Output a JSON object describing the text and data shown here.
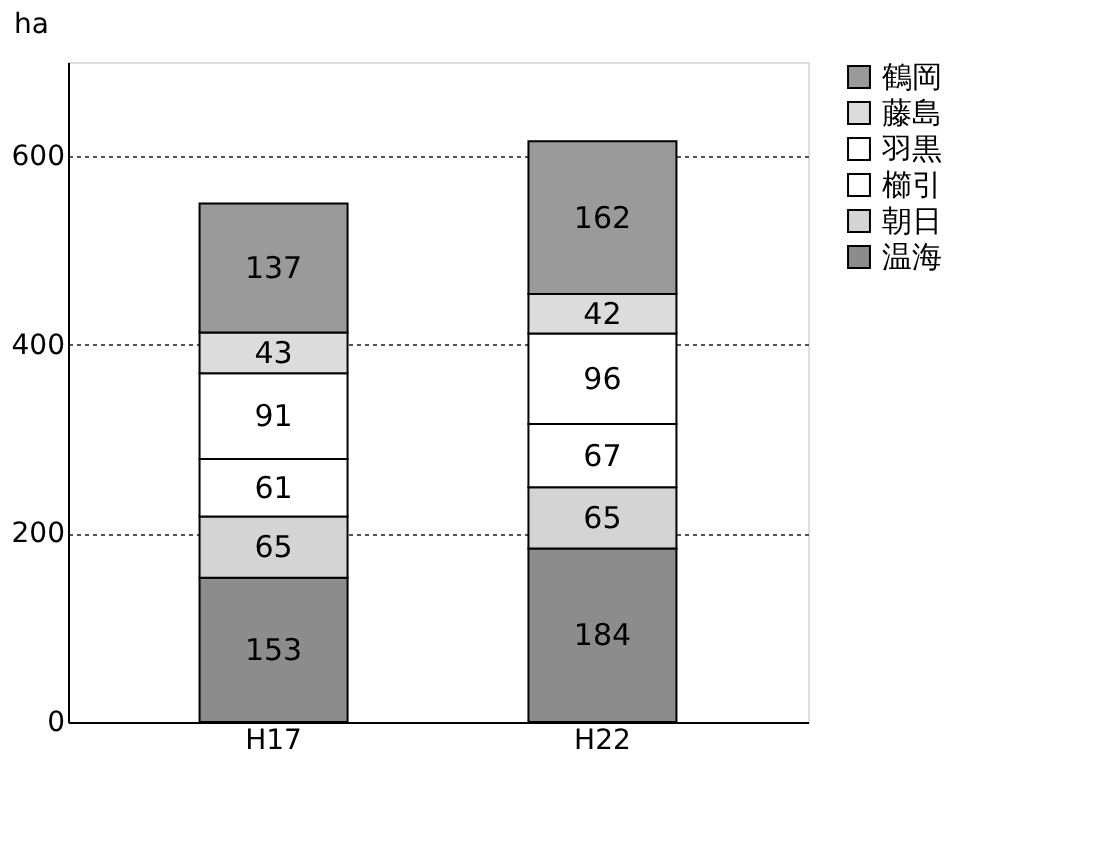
{
  "chart_data": {
    "type": "bar",
    "stacked": true,
    "ylabel": "ha",
    "categories": [
      "H17",
      "H22"
    ],
    "series": [
      {
        "name": "温海",
        "color": "#8c8c8c",
        "values": [
          153,
          184
        ]
      },
      {
        "name": "朝日",
        "color": "#d4d4d4",
        "values": [
          65,
          65
        ]
      },
      {
        "name": "櫛引",
        "color": "#ffffff",
        "values": [
          61,
          67
        ]
      },
      {
        "name": "羽黒",
        "color": "#ffffff",
        "values": [
          91,
          96
        ]
      },
      {
        "name": "藤島",
        "color": "#dcdcdc",
        "values": [
          43,
          42
        ]
      },
      {
        "name": "鶴岡",
        "color": "#9a9a9a",
        "values": [
          137,
          162
        ]
      }
    ],
    "ylim": [
      0,
      700
    ],
    "yticks": [
      0,
      200,
      400,
      600
    ],
    "grid": "y",
    "legend": "right",
    "data_labels": true
  }
}
